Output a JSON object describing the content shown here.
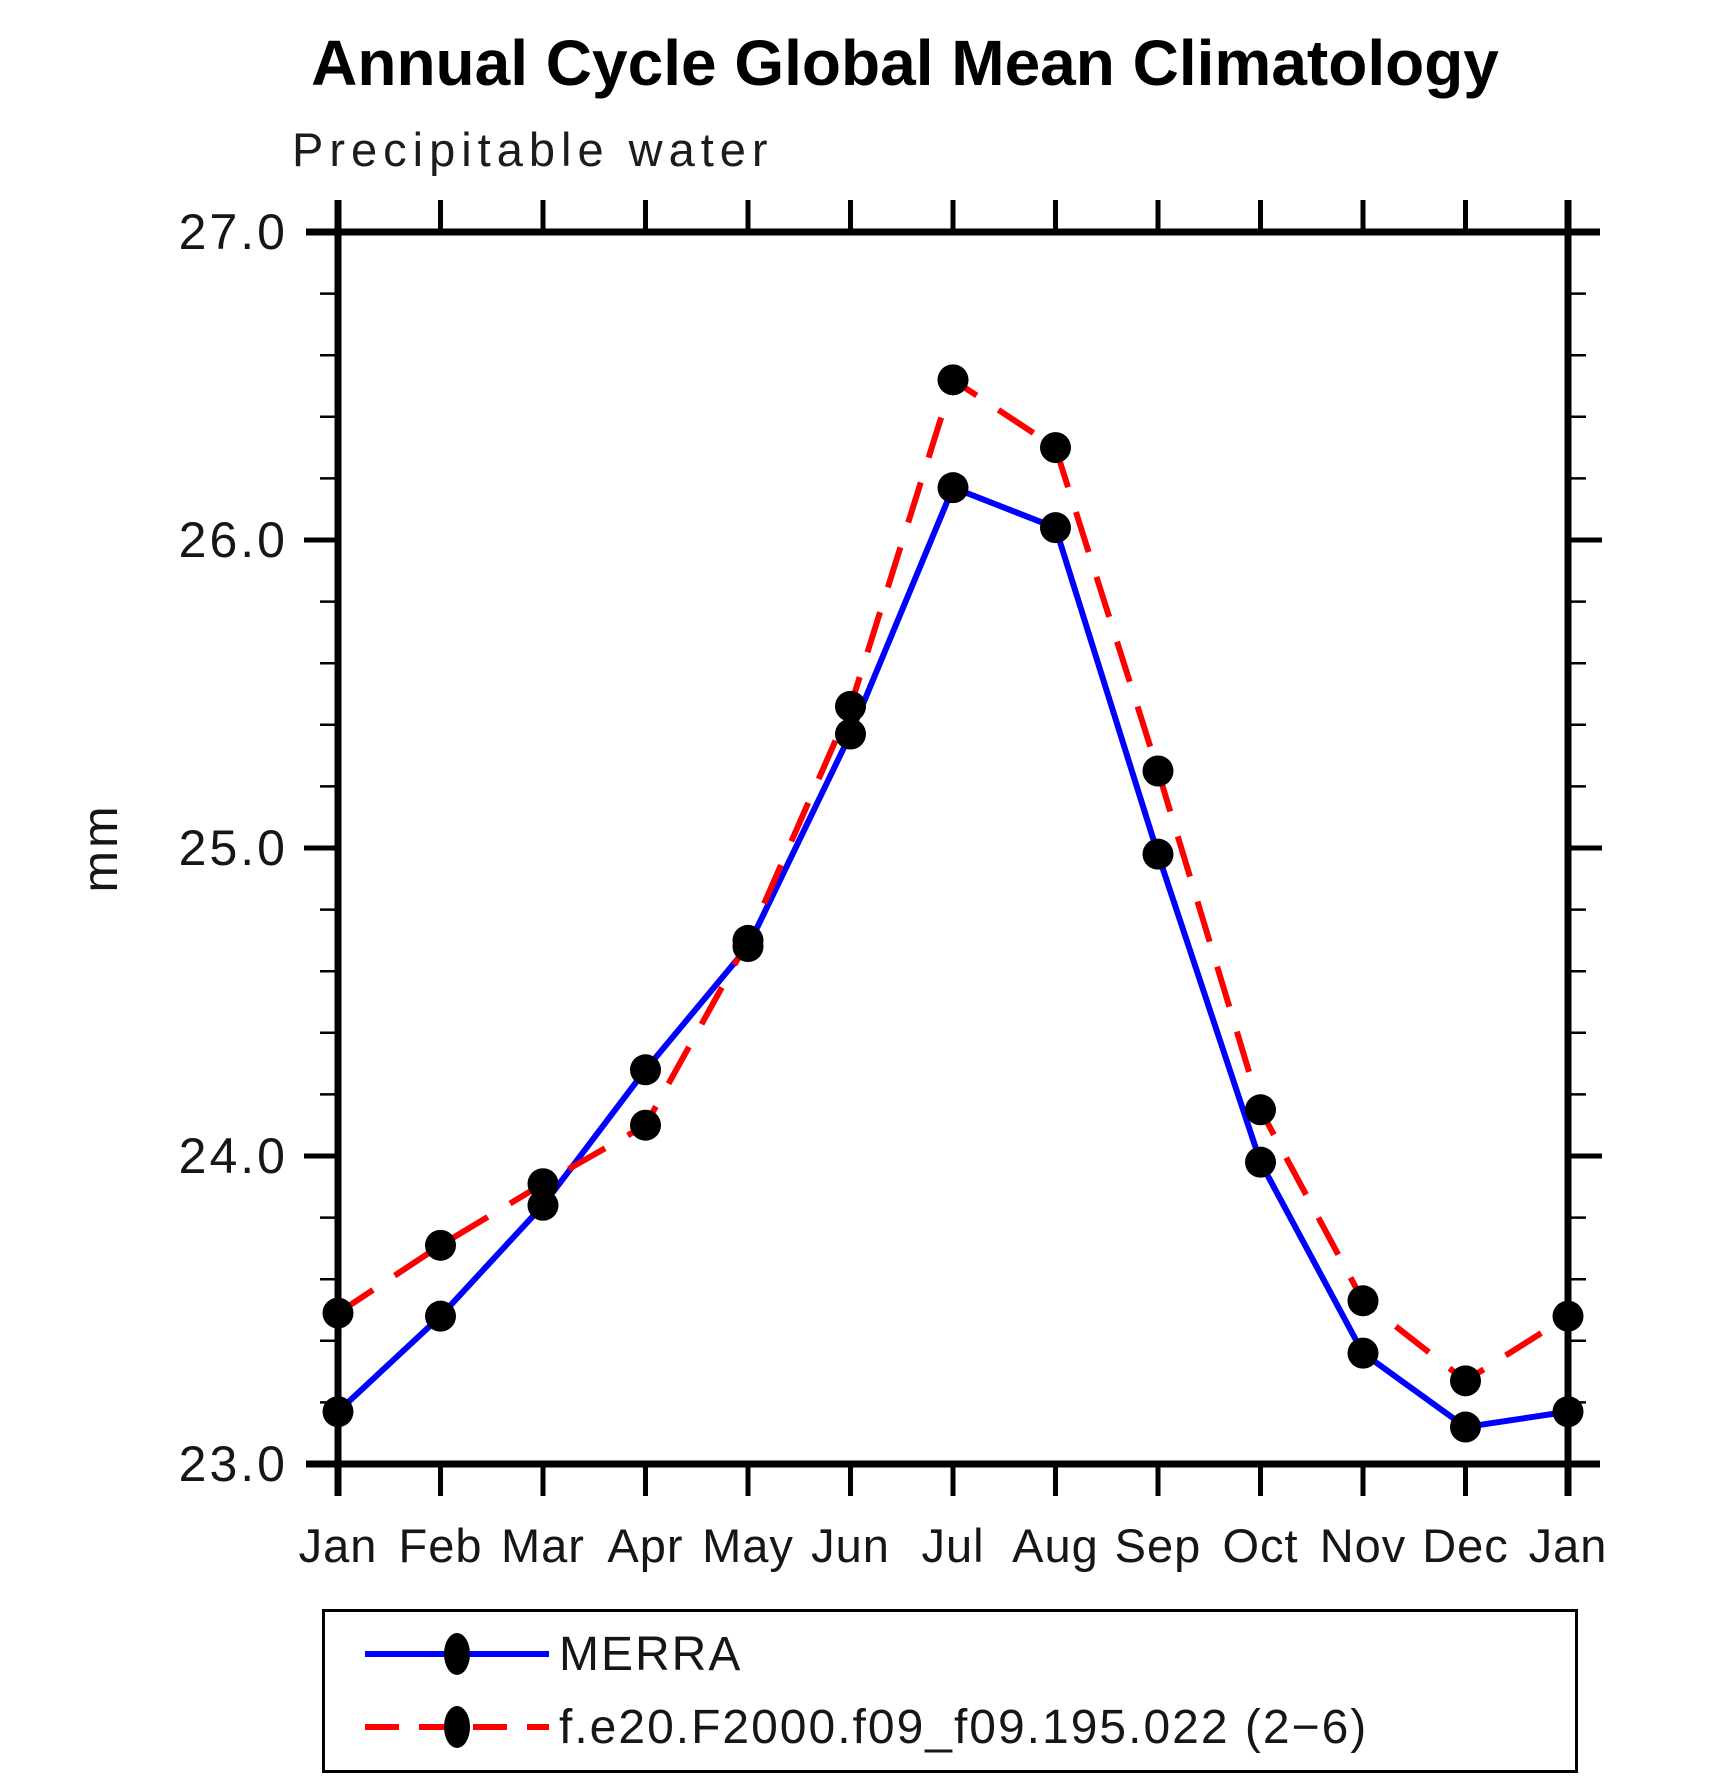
{
  "page": {
    "background": "#ffffff"
  },
  "chart_data": {
    "type": "line",
    "title": "Annual Cycle Global Mean Climatology",
    "subtitle": "Precipitable water",
    "ylabel": "mm",
    "xlabel": "",
    "categories": [
      "Jan",
      "Feb",
      "Mar",
      "Apr",
      "May",
      "Jun",
      "Jul",
      "Aug",
      "Sep",
      "Oct",
      "Nov",
      "Dec",
      "Jan"
    ],
    "ylim": [
      23.0,
      27.0
    ],
    "ytick_major": [
      23.0,
      24.0,
      25.0,
      26.0,
      27.0
    ],
    "ytick_labels": [
      "23.0",
      "24.0",
      "25.0",
      "26.0",
      "27.0"
    ],
    "ytick_minor_step": 0.2,
    "grid": false,
    "legend_position": "bottom",
    "axis_color": "#000000",
    "series": [
      {
        "name": "MERRA",
        "color": "#0000ff",
        "style": "solid",
        "marker": "circle",
        "marker_color": "#000000",
        "values": [
          23.17,
          23.48,
          23.84,
          24.28,
          24.68,
          25.37,
          26.17,
          26.04,
          24.98,
          23.98,
          23.36,
          23.12,
          23.17
        ]
      },
      {
        "name": "f.e20.F2000.f09_f09.195.022 (2−6)",
        "color": "#ff0000",
        "style": "dashed",
        "marker": "circle",
        "marker_color": "#000000",
        "values": [
          23.49,
          23.71,
          23.91,
          24.1,
          24.7,
          25.46,
          26.52,
          26.3,
          25.25,
          24.15,
          23.53,
          23.27,
          23.48
        ]
      }
    ]
  }
}
